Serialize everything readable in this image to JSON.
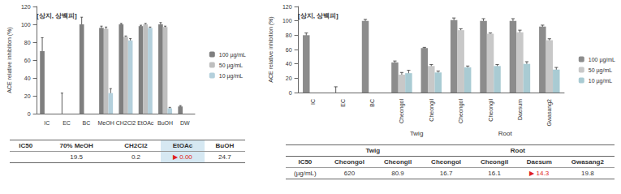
{
  "chart_data": [
    {
      "type": "bar",
      "title": "[상지, 상백피]",
      "y_label": "ACE relative inhibition (%)",
      "categories": [
        "IC",
        "EC",
        "BC",
        "MeOH",
        "CH2Cl2",
        "EtOAc",
        "BuOH",
        "DW"
      ],
      "series": [
        {
          "name": "100 µg/mL",
          "color": "#7f7f7f",
          "values": [
            70,
            0,
            100,
            96,
            100,
            98,
            100,
            8
          ],
          "errors": [
            15,
            23,
            8,
            2,
            1,
            1,
            2,
            1
          ]
        },
        {
          "name": "50 µg/mL",
          "color": "#bfbfbf",
          "values": [
            null,
            null,
            null,
            95,
            86,
            100,
            97,
            null
          ],
          "errors": [
            null,
            null,
            null,
            2,
            1,
            1,
            1,
            null
          ]
        },
        {
          "name": "10 µg/mL",
          "color": "#b4d0dc",
          "values": [
            null,
            null,
            null,
            23,
            82,
            96,
            6,
            null
          ],
          "errors": [
            null,
            null,
            null,
            5,
            2,
            1,
            1,
            null
          ]
        }
      ],
      "ylim": [
        0,
        120
      ],
      "yticks": [
        0,
        20,
        40,
        60,
        80,
        100,
        120
      ],
      "grid": false,
      "legend": "right"
    },
    {
      "type": "bar",
      "title": "[상지, 상백피]",
      "y_label": "ACE relative inhibition (%)",
      "categories": [
        "IC",
        "EC",
        "BC",
        "Cheongol",
        "Cheongil",
        "Cheongol",
        "Cheongil",
        "Daesum",
        "Gwasang2"
      ],
      "category_groups": [
        null,
        null,
        null,
        "Twig",
        "Twig",
        "Root",
        "Root",
        "Root",
        "Root"
      ],
      "series": [
        {
          "name": "100 µg/mL",
          "color": "#8c8c8c",
          "values": [
            80,
            0,
            100,
            42,
            62,
            101,
            100,
            100,
            92
          ],
          "errors": [
            3,
            8,
            2,
            2,
            1,
            3,
            3,
            3,
            2
          ]
        },
        {
          "name": "50 µg/mL",
          "color": "#c8c8c8",
          "values": [
            null,
            null,
            null,
            25,
            37,
            87,
            82,
            84,
            73
          ],
          "errors": [
            null,
            null,
            null,
            3,
            2,
            2,
            1,
            3,
            2
          ]
        },
        {
          "name": "10 µg/mL",
          "color": "#a9cbd3",
          "values": [
            null,
            null,
            null,
            27,
            28,
            35,
            37,
            40,
            32
          ],
          "errors": [
            null,
            null,
            null,
            4,
            2,
            2,
            2,
            3,
            3
          ]
        }
      ],
      "ylim": [
        0,
        120
      ],
      "yticks": [
        0,
        20,
        40,
        60,
        80,
        100,
        120
      ],
      "grid": false,
      "legend": "right"
    }
  ],
  "tables": [
    {
      "header": [
        "IC50",
        "70% MeOH",
        "CH2Cl2",
        "EtOAc",
        "BuOH"
      ],
      "rows": [
        [
          "",
          "19.5",
          "0.2",
          "▶ 0.00",
          "24.7"
        ]
      ]
    },
    {
      "group_row": [
        "",
        "Twig",
        "Twig",
        "Root",
        "Root",
        "Root",
        "Root"
      ],
      "header": [
        "IC50",
        "Cheongol",
        "Cheongil",
        "Cheongol",
        "Cheongil",
        "Daesum",
        "Gwasang2"
      ],
      "rows": [
        [
          "(µg/mL)",
          "620",
          "80.9",
          "16.7",
          "16.1",
          "▶ 14.3",
          "19.8"
        ]
      ]
    }
  ]
}
